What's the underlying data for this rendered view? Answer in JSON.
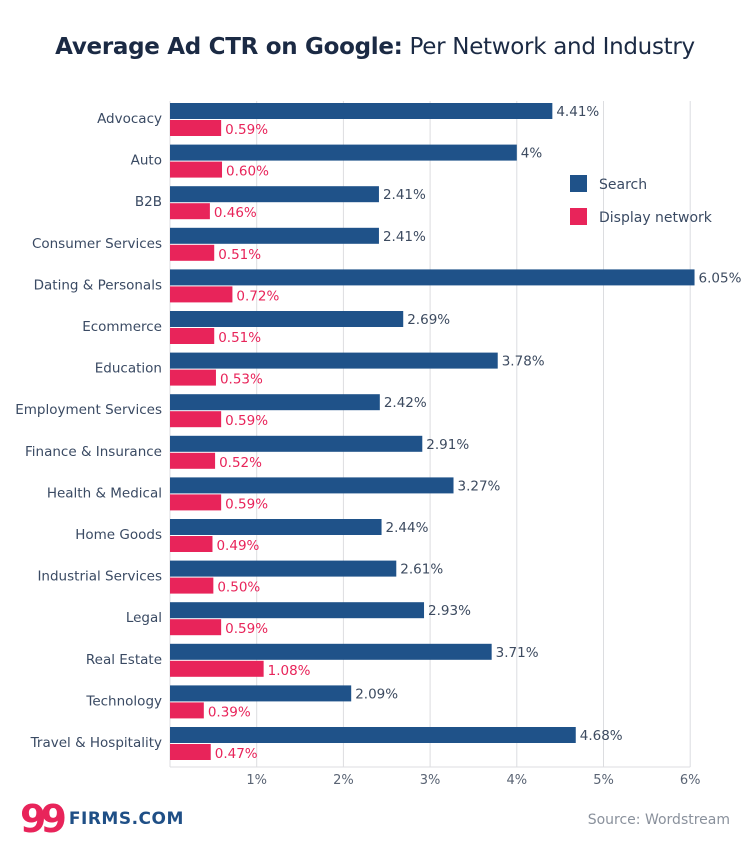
{
  "title": {
    "bold": "Average Ad CTR on Google:",
    "regular": "Per Network and Industry"
  },
  "colors": {
    "search": "#1f5289",
    "display": "#e8245a",
    "grid": "#dcdde0",
    "text": "#3a4a63"
  },
  "chart_data": {
    "type": "bar",
    "orientation": "horizontal",
    "title": "Average Ad CTR on Google: Per Network and Industry",
    "xlabel": "",
    "ylabel": "",
    "xlim": [
      0,
      6
    ],
    "x_ticks": [
      "1%",
      "2%",
      "3%",
      "4%",
      "5%",
      "6%"
    ],
    "x_tick_values": [
      1,
      2,
      3,
      4,
      5,
      6
    ],
    "grid": true,
    "legend_position": "top-right",
    "categories": [
      "Advocacy",
      "Auto",
      "B2B",
      "Consumer Services",
      "Dating & Personals",
      "Ecommerce",
      "Education",
      "Employment Services",
      "Finance & Insurance",
      "Health & Medical",
      "Home Goods",
      "Industrial Services",
      "Legal",
      "Real Estate",
      "Technology",
      "Travel & Hospitality"
    ],
    "series": [
      {
        "name": "Search",
        "values": [
          4.41,
          4,
          2.41,
          2.41,
          6.05,
          2.69,
          3.78,
          2.42,
          2.91,
          3.27,
          2.44,
          2.61,
          2.93,
          3.71,
          2.09,
          4.68
        ],
        "labels": [
          "4.41%",
          "4%",
          "2.41%",
          "2.41%",
          "6.05%",
          "2.69%",
          "3.78%",
          "2.42%",
          "2.91%",
          "3.27%",
          "2.44%",
          "2.61%",
          "2.93%",
          "3.71%",
          "2.09%",
          "4.68%"
        ]
      },
      {
        "name": "Display network",
        "values": [
          0.59,
          0.6,
          0.46,
          0.51,
          0.72,
          0.51,
          0.53,
          0.59,
          0.52,
          0.59,
          0.49,
          0.5,
          0.59,
          1.08,
          0.39,
          0.47
        ],
        "labels": [
          "0.59%",
          "0.60%",
          "0.46%",
          "0.51%",
          "0.72%",
          "0.51%",
          "0.53%",
          "0.59%",
          "0.52%",
          "0.59%",
          "0.49%",
          "0.50%",
          "0.59%",
          "1.08%",
          "0.39%",
          "0.47%"
        ]
      }
    ]
  },
  "legend": {
    "items": [
      {
        "label": "Search",
        "color": "#1f5289"
      },
      {
        "label": "Display network",
        "color": "#e8245a"
      }
    ]
  },
  "footer": {
    "logo_number": "99",
    "logo_text": "FIRMS.COM",
    "source": "Source: Wordstream"
  }
}
